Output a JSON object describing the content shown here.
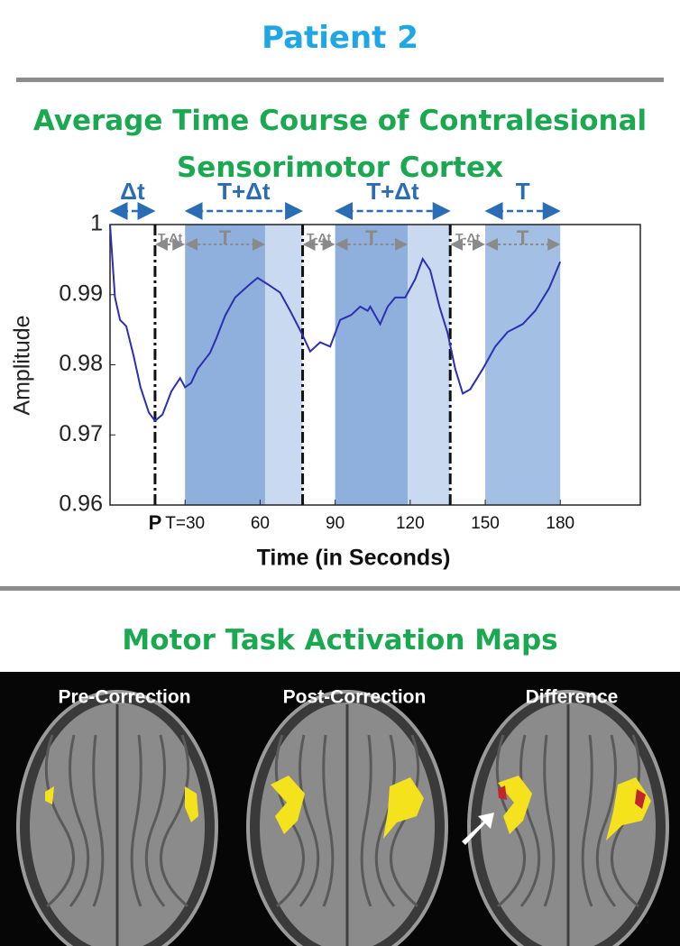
{
  "title": "Patient 2",
  "chart_data": {
    "type": "line",
    "title": "Average Time Course of Contralesional Sensorimotor Cortex",
    "xlabel": "Time (in Seconds)",
    "ylabel": "Amplitude",
    "x": [
      0,
      2,
      4,
      6.5,
      9.4,
      12.2,
      15.5,
      18,
      21,
      24.5,
      28,
      30,
      32.4,
      35,
      40,
      42.5,
      46,
      50,
      55,
      59,
      63,
      68,
      72,
      76.6,
      80,
      84,
      88,
      92,
      96.4,
      100,
      103,
      104,
      108,
      111,
      114,
      118,
      122,
      125,
      128,
      131.7,
      135,
      138,
      141,
      144,
      149,
      154,
      159,
      165,
      170,
      175.5,
      180
    ],
    "series": [
      {
        "color": "#2b2fb0",
        "values": [
          1.0,
          0.9896,
          0.9864,
          0.9855,
          0.9813,
          0.9768,
          0.9732,
          0.972,
          0.9729,
          0.9762,
          0.9781,
          0.9768,
          0.9774,
          0.9794,
          0.9817,
          0.9838,
          0.987,
          0.9896,
          0.9912,
          0.9924,
          0.9915,
          0.9903,
          0.9877,
          0.9845,
          0.9819,
          0.9832,
          0.9826,
          0.9864,
          0.9871,
          0.9883,
          0.9877,
          0.9883,
          0.9858,
          0.9883,
          0.9896,
          0.9896,
          0.9922,
          0.9951,
          0.9935,
          0.9883,
          0.9845,
          0.9794,
          0.9759,
          0.9765,
          0.9794,
          0.9826,
          0.9847,
          0.9858,
          0.9877,
          0.9909,
          0.9947
        ]
      }
    ],
    "xlim": [
      0,
      212
    ],
    "ylim": [
      0.96,
      1
    ],
    "xticks": [
      {
        "value": 18,
        "label": "P"
      },
      {
        "value": 30,
        "label": "T=30"
      },
      60,
      90,
      120,
      150,
      180
    ],
    "yticks": [
      0.96,
      0.97,
      0.98,
      0.99,
      1
    ],
    "regions": [
      {
        "span": [
          30,
          62
        ],
        "color": "#8fb0dc"
      },
      {
        "span": [
          62,
          77
        ],
        "color": "#c9daf0"
      },
      {
        "span": [
          90,
          119
        ],
        "color": "#8fb0dc"
      },
      {
        "span": [
          119,
          136
        ],
        "color": "#c9daf0"
      },
      {
        "span": [
          150,
          180
        ],
        "color": "#a3bfe4"
      }
    ],
    "vlines": [
      18,
      77,
      136
    ],
    "annotations": [
      {
        "text": "Δt",
        "span": [
          0,
          18
        ],
        "row": "top"
      },
      {
        "text": "T+Δt",
        "span": [
          30,
          77
        ],
        "row": "top"
      },
      {
        "text": "T+Δt",
        "span": [
          90,
          136
        ],
        "row": "top"
      },
      {
        "text": "T",
        "span": [
          150,
          180
        ],
        "row": "top"
      },
      {
        "text": "T-Δt",
        "span": [
          18,
          30
        ],
        "row": "inner"
      },
      {
        "text": "T",
        "span": [
          30,
          62
        ],
        "row": "inner"
      },
      {
        "text": "T-Δt",
        "span": [
          77,
          90
        ],
        "row": "inner"
      },
      {
        "text": "T",
        "span": [
          90,
          119
        ],
        "row": "inner"
      },
      {
        "text": "T-Δt",
        "span": [
          136,
          150
        ],
        "row": "inner"
      },
      {
        "text": "T",
        "span": [
          150,
          180
        ],
        "row": "inner"
      }
    ]
  },
  "maps": {
    "title": "Motor Task Activation Maps",
    "panels": [
      "Pre-Correction",
      "Post-Correction",
      "Difference"
    ]
  }
}
